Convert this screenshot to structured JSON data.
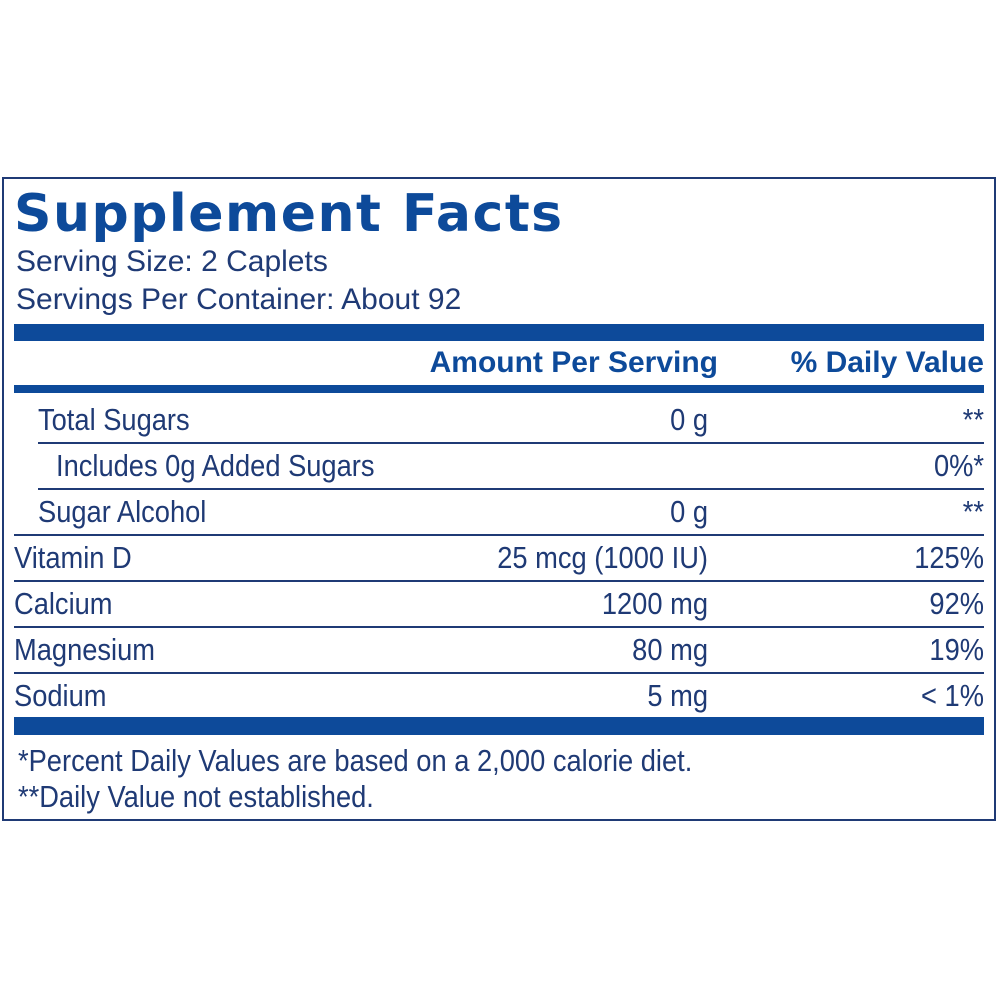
{
  "label": {
    "title": "Supplement Facts",
    "serving_size": "Serving Size: 2 Caplets",
    "servings_per_container": "Servings Per Container: About 92",
    "header_amount": "Amount Per Serving",
    "header_daily_value": "% Daily Value",
    "rows": [
      {
        "name": "Total Sugars",
        "amount": "0 g",
        "daily_value": "**",
        "indent": 1
      },
      {
        "name": "Includes 0g Added Sugars",
        "amount": "",
        "daily_value": "0%*",
        "indent": 2
      },
      {
        "name": "Sugar Alcohol",
        "amount": "0 g",
        "daily_value": "**",
        "indent": 1
      },
      {
        "name": "Vitamin D",
        "amount": "25 mcg (1000 IU)",
        "daily_value": "125%",
        "indent": 0
      },
      {
        "name": "Calcium",
        "amount": "1200 mg",
        "daily_value": "92%",
        "indent": 0
      },
      {
        "name": "Magnesium",
        "amount": "80 mg",
        "daily_value": "19%",
        "indent": 0
      },
      {
        "name": "Sodium",
        "amount": "5 mg",
        "daily_value": "< 1%",
        "indent": 0
      }
    ],
    "footnote_1": "*Percent Daily Values are based on a 2,000 calorie diet.",
    "footnote_2": "**Daily Value not established."
  },
  "colors": {
    "heading_blue": "#0d4a9a",
    "text_navy": "#1f3a75",
    "background": "#ffffff"
  }
}
